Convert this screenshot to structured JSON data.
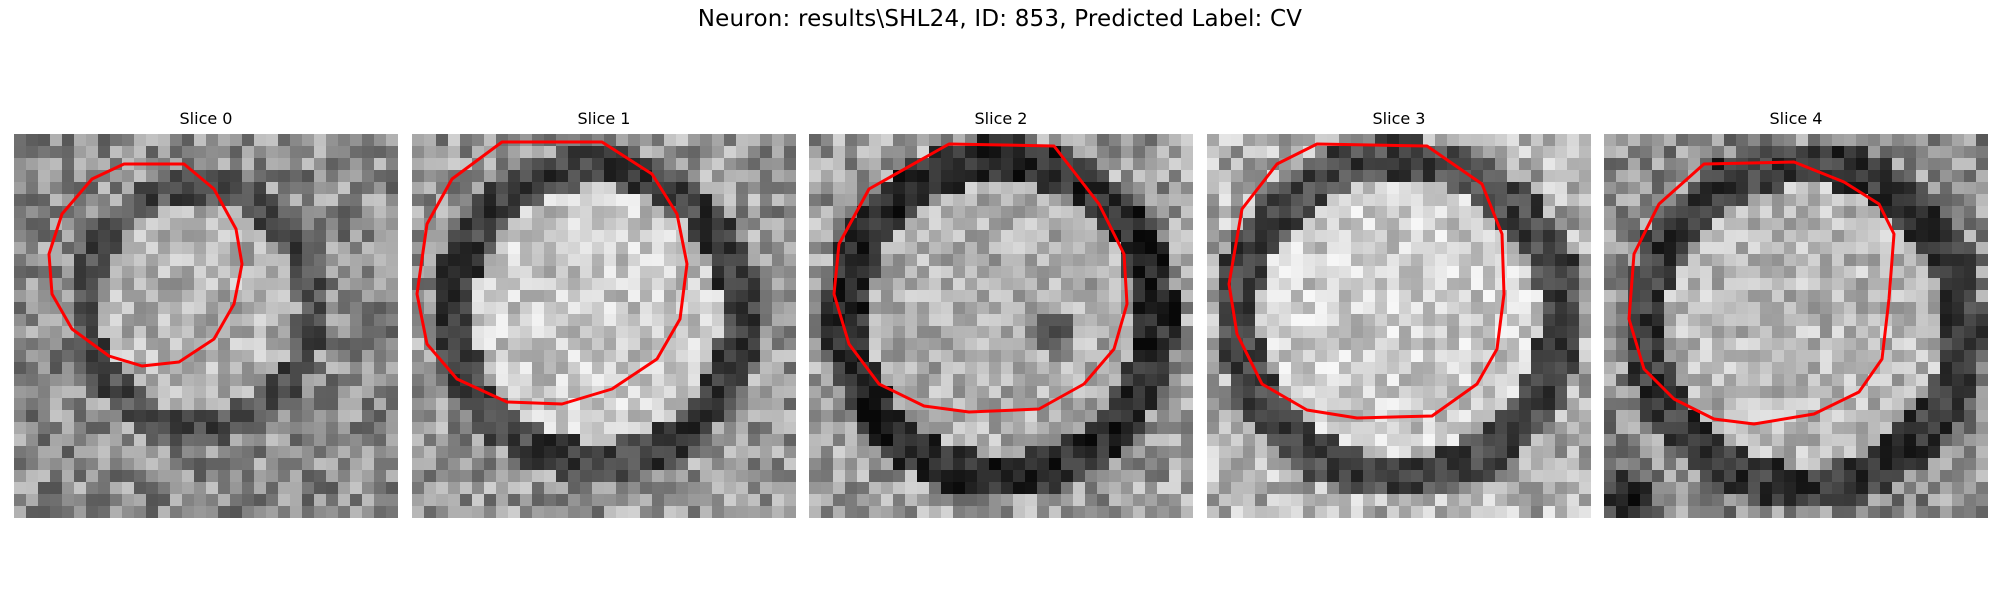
{
  "figure": {
    "title": "Neuron: results\\SHL24, ID: 853, Predicted Label: CV"
  },
  "colors": {
    "contour": "#ff0000",
    "background": "#ffffff"
  },
  "slices": [
    {
      "label": "Slice 0"
    },
    {
      "label": "Slice 1"
    },
    {
      "label": "Slice 2"
    },
    {
      "label": "Slice 3"
    },
    {
      "label": "Slice 4"
    }
  ]
}
